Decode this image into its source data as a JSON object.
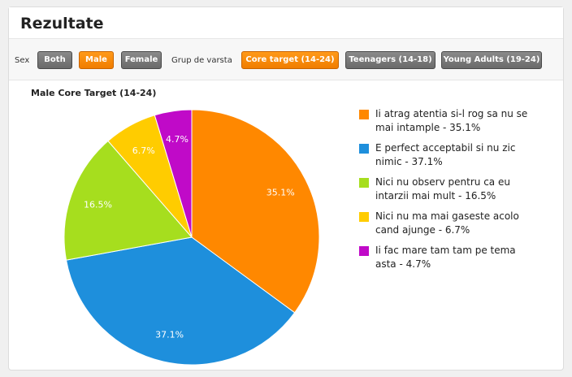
{
  "panel": {
    "title": "Rezultate"
  },
  "filters": {
    "sex_label": "Sex",
    "sex_buttons": {
      "both": "Both",
      "male": "Male",
      "female": "Female"
    },
    "age_label": "Grup de varsta",
    "age_buttons": {
      "core": "Core target (14-24)",
      "teen": "Teenagers (14-18)",
      "young": "Young Adults (19-24)"
    },
    "active": {
      "sex": "Male",
      "age": "Core target (14-24)"
    }
  },
  "colors": {
    "orange": "#ff8800",
    "blue": "#1e8fdc",
    "green": "#a6de1e",
    "yellow": "#ffcc00",
    "purple": "#c00ac8"
  },
  "chart_data": {
    "type": "pie",
    "title": "Male Core Target (14-24)",
    "slices": [
      {
        "label": "Ii atrag atentia si-l rog sa nu se mai intample - 35.1%",
        "value": 35.1,
        "data_label": "35.1%",
        "color": "#ff8800"
      },
      {
        "label": "E perfect acceptabil si nu zic nimic - 37.1%",
        "value": 37.1,
        "data_label": "37.1%",
        "color": "#1e8fdc"
      },
      {
        "label": "Nici nu observ pentru ca eu intarzii mai mult - 16.5%",
        "value": 16.5,
        "data_label": "16.5%",
        "color": "#a6de1e"
      },
      {
        "label": "Nici nu ma mai gaseste acolo cand ajunge - 6.7%",
        "value": 6.7,
        "data_label": "6.7%",
        "color": "#ffcc00"
      },
      {
        "label": "Ii fac mare tam tam pe tema asta - 4.7%",
        "value": 4.7,
        "data_label": "4.7%",
        "color": "#c00ac8"
      }
    ],
    "legend_position": "right"
  }
}
